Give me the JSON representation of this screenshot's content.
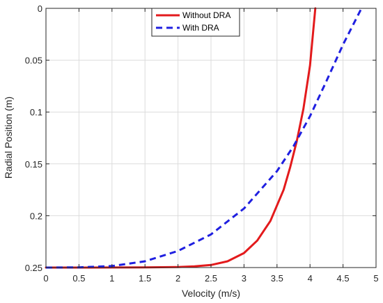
{
  "chart_data": {
    "type": "line",
    "xlabel": "Velocity (m/s)",
    "ylabel": "Radial Position (m)",
    "xlim": [
      0,
      5
    ],
    "ylim": [
      0,
      0.25
    ],
    "y_reversed": true,
    "grid": true,
    "legend_position": "top-center",
    "x_ticks": [
      0,
      0.5,
      1,
      1.5,
      2,
      2.5,
      3,
      3.5,
      4,
      4.5,
      5
    ],
    "y_ticks": [
      0,
      0.05,
      0.1,
      0.15,
      0.2,
      0.25
    ],
    "x_tick_labels": [
      "0",
      "0.5",
      "1",
      "1.5",
      "2",
      "2.5",
      "3",
      "3.5",
      "4",
      "4.5",
      "5"
    ],
    "y_tick_labels": [
      "0",
      "0.05",
      "0.1",
      "0.15",
      "0.2",
      "0.25"
    ],
    "series": [
      {
        "name": "Without DRA",
        "color": "#e31a1c",
        "line_style": "solid",
        "points": [
          [
            0.0,
            0.25
          ],
          [
            0.5,
            0.25
          ],
          [
            1.0,
            0.2499
          ],
          [
            1.5,
            0.2498
          ],
          [
            2.0,
            0.2495
          ],
          [
            2.25,
            0.2488
          ],
          [
            2.5,
            0.2475
          ],
          [
            2.75,
            0.244
          ],
          [
            3.0,
            0.236
          ],
          [
            3.2,
            0.224
          ],
          [
            3.4,
            0.205
          ],
          [
            3.6,
            0.175
          ],
          [
            3.7,
            0.153
          ],
          [
            3.8,
            0.128
          ],
          [
            3.9,
            0.097
          ],
          [
            4.0,
            0.055
          ],
          [
            4.08,
            0.0
          ]
        ]
      },
      {
        "name": "With DRA",
        "color": "#1f1fe0",
        "line_style": "dashed",
        "points": [
          [
            0.0,
            0.25
          ],
          [
            0.5,
            0.2498
          ],
          [
            1.0,
            0.2485
          ],
          [
            1.5,
            0.244
          ],
          [
            2.0,
            0.234
          ],
          [
            2.5,
            0.218
          ],
          [
            3.0,
            0.193
          ],
          [
            3.5,
            0.157
          ],
          [
            3.75,
            0.133
          ],
          [
            4.0,
            0.104
          ],
          [
            4.25,
            0.07
          ],
          [
            4.5,
            0.035
          ],
          [
            4.78,
            0.0
          ]
        ]
      }
    ]
  }
}
